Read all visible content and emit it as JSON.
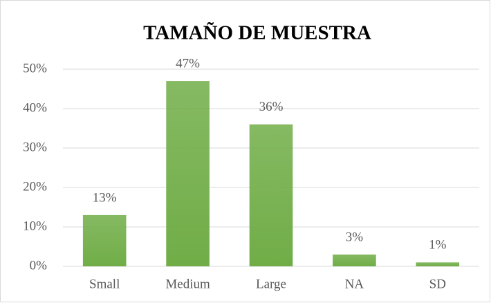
{
  "chart_data": {
    "type": "bar",
    "title": "TAMAÑO DE MUESTRA",
    "categories": [
      "Small",
      "Medium",
      "Large",
      "NA",
      "SD"
    ],
    "values": [
      13,
      47,
      36,
      3,
      1
    ],
    "value_labels": [
      "13%",
      "47%",
      "36%",
      "3%",
      "1%"
    ],
    "color": "#70ad47",
    "ylim": [
      0,
      50
    ],
    "yticks": [
      {
        "value": 0,
        "label": "0%"
      },
      {
        "value": 10,
        "label": "10%"
      },
      {
        "value": 20,
        "label": "20%"
      },
      {
        "value": 30,
        "label": "30%"
      },
      {
        "value": 40,
        "label": "40%"
      },
      {
        "value": 50,
        "label": "50%"
      }
    ],
    "grid": true
  }
}
